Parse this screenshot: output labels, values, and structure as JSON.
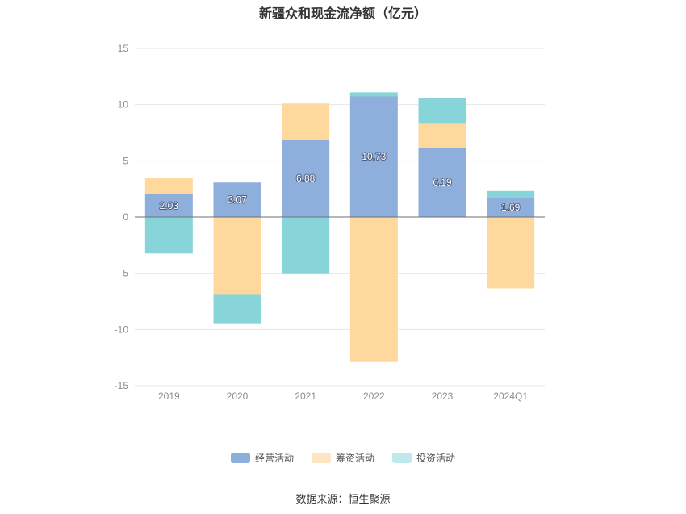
{
  "chart_data": {
    "type": "bar",
    "stacked": true,
    "title": "新疆众和现金流净额（亿元）",
    "categories": [
      "2019",
      "2020",
      "2021",
      "2022",
      "2023",
      "2024Q1"
    ],
    "ylim": [
      -15,
      15
    ],
    "yticks": [
      15,
      10,
      5,
      0,
      -5,
      -10,
      -15
    ],
    "grid": true,
    "legend_position": "bottom",
    "series": [
      {
        "name": "经营活动",
        "color": "#8eaedb",
        "values": [
          2.03,
          3.07,
          6.88,
          10.73,
          6.19,
          1.69
        ],
        "show_labels": true
      },
      {
        "name": "筹资活动",
        "color": "#fed89c",
        "values": [
          1.47,
          -6.85,
          3.22,
          -12.9,
          2.11,
          -6.35
        ],
        "show_labels": false
      },
      {
        "name": "投资活动",
        "color": "#88d5d9",
        "values": [
          -3.25,
          -2.6,
          -5.0,
          0.37,
          2.25,
          0.62
        ],
        "show_labels": false
      }
    ],
    "legend_colors": [
      "#8eaedb",
      "#fde6c4",
      "#bfe8ea"
    ]
  },
  "source": "数据来源：恒生聚源"
}
